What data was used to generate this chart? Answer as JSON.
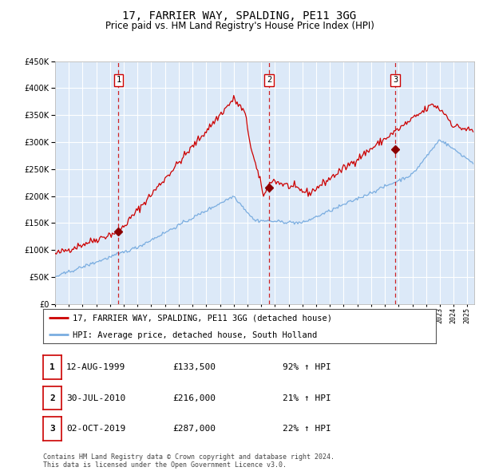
{
  "title": "17, FARRIER WAY, SPALDING, PE11 3GG",
  "subtitle": "Price paid vs. HM Land Registry's House Price Index (HPI)",
  "red_label": "17, FARRIER WAY, SPALDING, PE11 3GG (detached house)",
  "blue_label": "HPI: Average price, detached house, South Holland",
  "footnote": "Contains HM Land Registry data © Crown copyright and database right 2024.\nThis data is licensed under the Open Government Licence v3.0.",
  "transactions": [
    {
      "num": 1,
      "date": "12-AUG-1999",
      "price": "£133,500",
      "pct": "92% ↑ HPI"
    },
    {
      "num": 2,
      "date": "30-JUL-2010",
      "price": "£216,000",
      "pct": "21% ↑ HPI"
    },
    {
      "num": 3,
      "date": "02-OCT-2019",
      "price": "£287,000",
      "pct": "22% ↑ HPI"
    }
  ],
  "transaction_dates_decimal": [
    1999.61,
    2010.58,
    2019.75
  ],
  "transaction_prices": [
    133500,
    216000,
    287000
  ],
  "ylim": [
    0,
    450000
  ],
  "yticks": [
    0,
    50000,
    100000,
    150000,
    200000,
    250000,
    300000,
    350000,
    400000,
    450000
  ],
  "bg_color": "#dce9f8",
  "red_color": "#cc0000",
  "blue_color": "#7aade0",
  "marker_color": "#8b0000",
  "vline_color": "#cc0000",
  "box_color": "#cc0000",
  "grid_color": "#ffffff",
  "title_fontsize": 10,
  "subtitle_fontsize": 8.5,
  "xstart": 1995.0,
  "xend": 2025.5
}
